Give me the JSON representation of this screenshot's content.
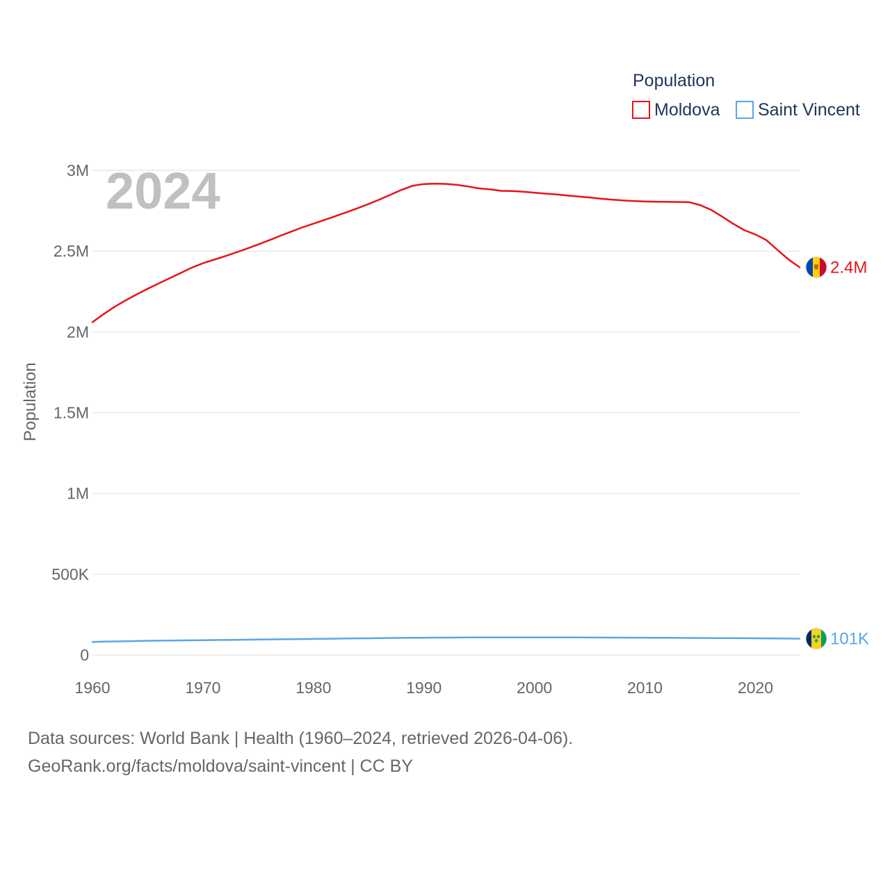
{
  "chart_data": {
    "type": "line",
    "legend_title": "Population",
    "year_label": "2024",
    "ylabel": "Population",
    "x": [
      1960,
      1961,
      1962,
      1963,
      1964,
      1965,
      1966,
      1967,
      1968,
      1969,
      1970,
      1971,
      1972,
      1973,
      1974,
      1975,
      1976,
      1977,
      1978,
      1979,
      1980,
      1981,
      1982,
      1983,
      1984,
      1985,
      1986,
      1987,
      1988,
      1989,
      1990,
      1991,
      1992,
      1993,
      1994,
      1995,
      1996,
      1997,
      1998,
      1999,
      2000,
      2001,
      2002,
      2003,
      2004,
      2005,
      2006,
      2007,
      2008,
      2009,
      2010,
      2011,
      2012,
      2013,
      2014,
      2015,
      2016,
      2017,
      2018,
      2019,
      2020,
      2021,
      2022,
      2023,
      2024
    ],
    "xlim": [
      1960,
      2024
    ],
    "ylim": [
      0,
      3000000
    ],
    "x_ticks": [
      "1960",
      "1970",
      "1980",
      "1990",
      "2000",
      "2010",
      "2020"
    ],
    "y_ticks": [
      {
        "value": 0,
        "label": "0"
      },
      {
        "value": 500000,
        "label": "500K"
      },
      {
        "value": 1000000,
        "label": "1M"
      },
      {
        "value": 1500000,
        "label": "1.5M"
      },
      {
        "value": 2000000,
        "label": "2M"
      },
      {
        "value": 2500000,
        "label": "2.5M"
      },
      {
        "value": 3000000,
        "label": "3M"
      }
    ],
    "series": [
      {
        "name": "Moldova",
        "color": "#e8121a",
        "end_label": "2.4M",
        "flag": "moldova-flag",
        "values": [
          2060000,
          2110000,
          2155000,
          2195000,
          2232000,
          2267000,
          2300000,
          2333000,
          2365000,
          2398000,
          2425000,
          2447000,
          2469000,
          2492000,
          2516000,
          2541000,
          2568000,
          2595000,
          2621000,
          2647000,
          2670000,
          2693000,
          2717000,
          2741000,
          2766000,
          2792000,
          2820000,
          2850000,
          2880000,
          2905000,
          2915000,
          2918000,
          2916000,
          2910000,
          2900000,
          2888000,
          2882000,
          2873000,
          2872000,
          2868000,
          2862000,
          2856000,
          2851000,
          2844000,
          2838000,
          2832000,
          2825000,
          2819000,
          2814000,
          2810000,
          2807000,
          2806000,
          2805000,
          2804000,
          2803000,
          2785000,
          2755000,
          2713000,
          2669000,
          2630000,
          2603000,
          2568000,
          2507000,
          2448000,
          2400000
        ]
      },
      {
        "name": "Saint Vincent",
        "color": "#5aa5e8",
        "end_label": "101K",
        "flag": "saint-vincent-flag",
        "values": [
          81000,
          82500,
          84000,
          85300,
          86500,
          87600,
          88600,
          89400,
          90200,
          91000,
          91700,
          92400,
          93100,
          93900,
          94700,
          95500,
          96300,
          97100,
          97900,
          98700,
          99500,
          100300,
          101100,
          101900,
          102700,
          103500,
          104300,
          105000,
          105700,
          106300,
          106900,
          107400,
          107800,
          108100,
          108300,
          108400,
          108500,
          108600,
          108700,
          108800,
          108900,
          108900,
          108800,
          108600,
          108400,
          108200,
          108000,
          107800,
          107600,
          107300,
          107000,
          106700,
          106400,
          106000,
          105600,
          105200,
          104800,
          104400,
          104000,
          103600,
          103200,
          102800,
          102300,
          101700,
          101000
        ]
      }
    ]
  },
  "footer": {
    "line1": "Data sources: World Bank | Health (1960–2024, retrieved 2026-04-06).",
    "line2": "GeoRank.org/facts/moldova/saint-vincent | CC BY"
  }
}
